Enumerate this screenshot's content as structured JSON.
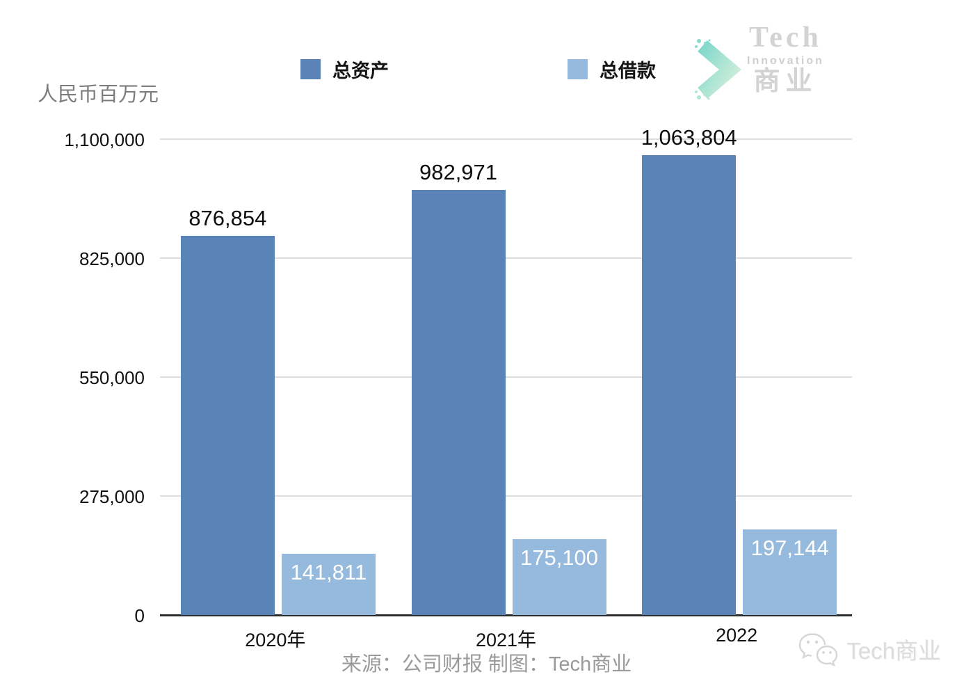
{
  "unit_label": "人民币百万元",
  "legend": [
    {
      "label": "总资产",
      "color": "#5a83b7"
    },
    {
      "label": "总借款",
      "color": "#96badd"
    }
  ],
  "logo": {
    "line1": "Tech",
    "line2": "Innovation",
    "line3": "商业"
  },
  "footer": {
    "source": "来源：公司财报 制图：Tech商业"
  },
  "watermark": {
    "text": "Tech商业"
  },
  "chart_data": {
    "type": "bar",
    "title": "",
    "ylabel": "人民币百万元",
    "xlabel": "",
    "categories": [
      "2020年",
      "2021年",
      "2022"
    ],
    "series": [
      {
        "name": "总资产",
        "color": "#5a83b7",
        "values": [
          876854,
          982971,
          1063804
        ],
        "labels": [
          "876,854",
          "982,971",
          "1,063,804"
        ],
        "label_position": "above",
        "label_color": "#0d0d0d"
      },
      {
        "name": "总借款",
        "color": "#96badd",
        "values": [
          141811,
          175100,
          197144
        ],
        "labels": [
          "141,811",
          "175,100",
          "197,144"
        ],
        "label_position": "inside-top",
        "label_color": "#ffffff"
      }
    ],
    "ylim": [
      0,
      1100000
    ],
    "y_ticks": [
      0,
      275000,
      550000,
      825000,
      1100000
    ],
    "y_tick_labels": [
      "0",
      "275,000",
      "550,000",
      "825,000",
      "1,100,000"
    ],
    "grid": true,
    "legend_position": "top"
  }
}
